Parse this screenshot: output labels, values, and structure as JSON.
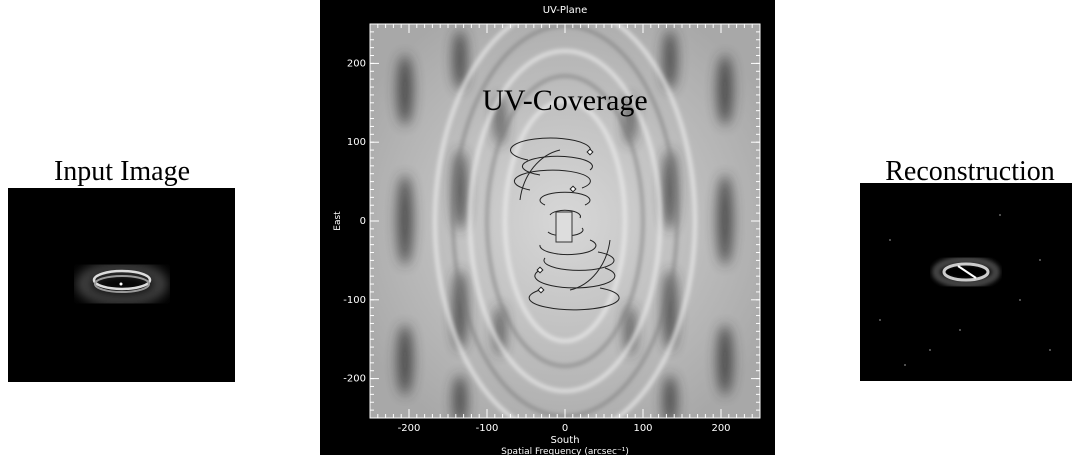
{
  "left_panel": {
    "title": "Input Image"
  },
  "center_panel": {
    "title": "UV-Plane",
    "overlay_label": "UV-Coverage",
    "xlabel": "South",
    "xlabel2": "Spatial Frequency (arcsec⁻¹)",
    "ylabel": "East",
    "xlim": [
      -250,
      250
    ],
    "ylim": [
      -250,
      250
    ],
    "xticks": [
      -200,
      -100,
      0,
      100,
      200
    ],
    "yticks": [
      -200,
      -100,
      0,
      100,
      200
    ]
  },
  "right_panel": {
    "title": "Reconstruction"
  }
}
